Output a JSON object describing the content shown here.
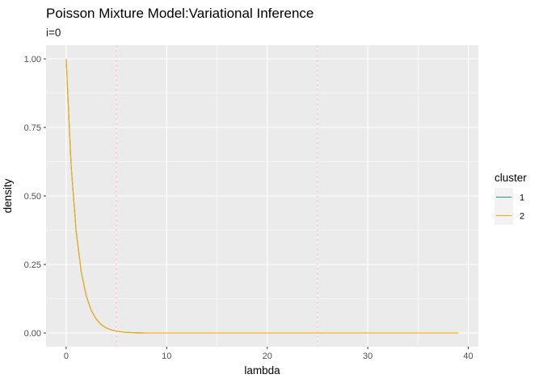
{
  "chart_data": {
    "type": "line",
    "title": "Poisson Mixture Model:Variational Inference",
    "subtitle": "i=0",
    "xlabel": "lambda",
    "ylabel": "density",
    "xlim": [
      -2,
      41
    ],
    "ylim": [
      -0.05,
      1.05
    ],
    "x_ticks": [
      0,
      10,
      20,
      30,
      40
    ],
    "x_tick_labels": [
      "0",
      "10",
      "20",
      "30",
      "40"
    ],
    "y_ticks": [
      0,
      0.25,
      0.5,
      0.75,
      1.0
    ],
    "y_tick_labels": [
      "0.00",
      "0.25",
      "0.50",
      "0.75",
      "1.00"
    ],
    "grid": true,
    "legend": {
      "title": "cluster",
      "position": "right"
    },
    "series": [
      {
        "name": "1",
        "color": "#1b9e77",
        "x": [
          0,
          0.5,
          1,
          1.5,
          2,
          2.5,
          3,
          3.5,
          4,
          4.5,
          5,
          5.5,
          6,
          7,
          8,
          9,
          10,
          12,
          15,
          20,
          25,
          30,
          35,
          39
        ],
        "y": [
          1.0,
          0.607,
          0.368,
          0.223,
          0.135,
          0.082,
          0.05,
          0.03,
          0.018,
          0.011,
          0.007,
          0.004,
          0.002,
          0.001,
          0.0,
          0.0,
          0.0,
          0.0,
          0.0,
          0.0,
          0.0,
          0.0,
          0.0,
          0.0
        ]
      },
      {
        "name": "2",
        "color": "#ffa500",
        "x": [
          0,
          0.5,
          1,
          1.5,
          2,
          2.5,
          3,
          3.5,
          4,
          4.5,
          5,
          5.5,
          6,
          7,
          8,
          9,
          10,
          12,
          15,
          20,
          25,
          30,
          35,
          39
        ],
        "y": [
          1.0,
          0.607,
          0.368,
          0.223,
          0.135,
          0.082,
          0.05,
          0.03,
          0.018,
          0.011,
          0.007,
          0.004,
          0.002,
          0.001,
          0.0,
          0.0,
          0.0,
          0.0,
          0.0,
          0.0,
          0.0,
          0.0,
          0.0,
          0.0
        ]
      }
    ],
    "vlines": [
      {
        "x": 5,
        "color": "#ffb6c1",
        "style": "dashed"
      },
      {
        "x": 25,
        "color": "#ffb6c1",
        "style": "dashed"
      }
    ]
  }
}
